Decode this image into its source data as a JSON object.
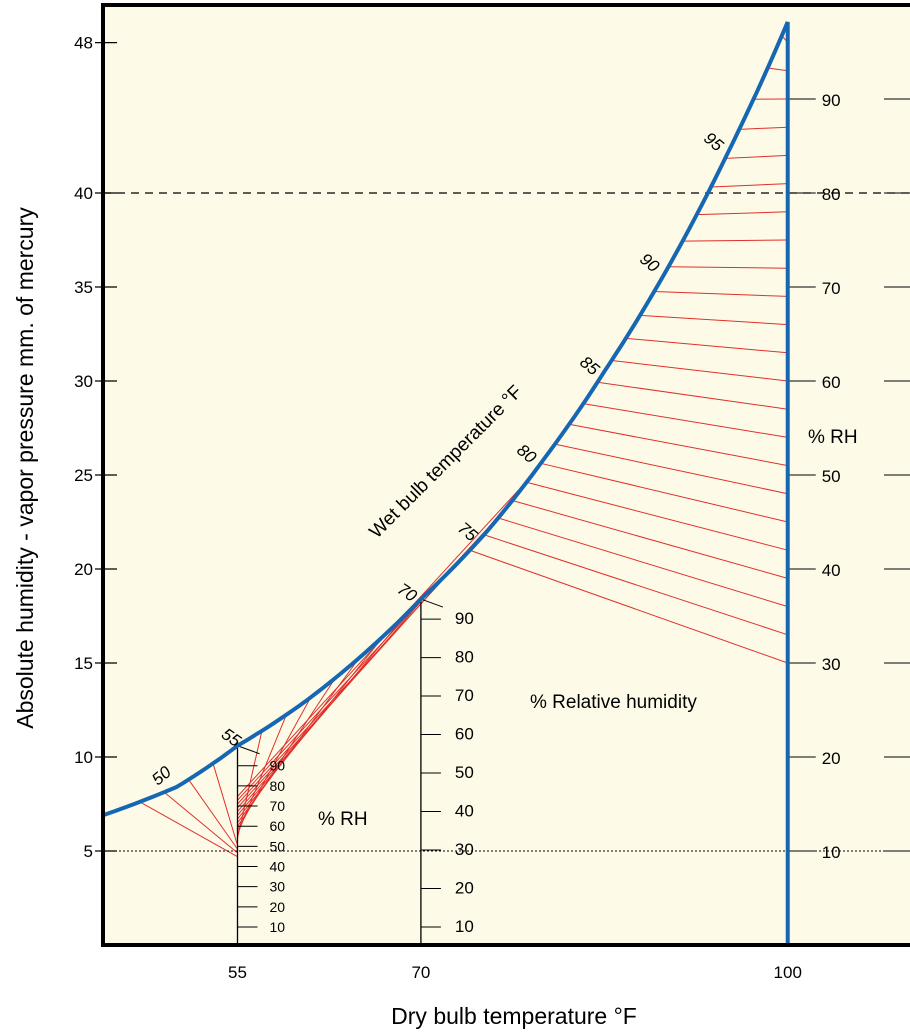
{
  "chart_data": {
    "type": "line",
    "xlabel": "Dry bulb temperature °F",
    "ylabel": "Absolute humidity - vapor pressure mm. of mercury",
    "x_ticks": [
      55,
      70,
      100
    ],
    "y_ticks": [
      5,
      10,
      15,
      20,
      25,
      30,
      35,
      40,
      48
    ],
    "xlim": [
      44,
      110
    ],
    "ylim": [
      0,
      50
    ],
    "saturation_curve": {
      "x": [
        44,
        50,
        55,
        60,
        65,
        70,
        75,
        80,
        85,
        90,
        95,
        100
      ],
      "y": [
        6.9,
        8.4,
        10.6,
        12.7,
        15.3,
        18.4,
        21.7,
        25.8,
        30.5,
        35.8,
        42.0,
        49.1
      ]
    },
    "wet_bulb_labels": [
      "50",
      "55",
      "70",
      "75",
      "80",
      "85",
      "90",
      "95"
    ],
    "wet_bulb_caption": "Wet bulb temperature °F",
    "rh_scales": [
      {
        "x": 55,
        "ticks": [
          "10",
          "20",
          "30",
          "40",
          "50",
          "60",
          "70",
          "80",
          "90"
        ]
      },
      {
        "x": 70,
        "ticks": [
          "10",
          "20",
          "30",
          "40",
          "50",
          "60",
          "70",
          "80",
          "90"
        ]
      },
      {
        "x": 100,
        "ticks": [
          "10",
          "20",
          "30",
          "40",
          "50",
          "60",
          "70",
          "80",
          "90"
        ]
      }
    ],
    "rh_labels": {
      "left": "% RH",
      "right": "% RH",
      "center": "% Relative humidity"
    },
    "reference_lines": {
      "dashed_y": 40,
      "dotted_y": 5
    },
    "colors": {
      "curve": "#1667b3",
      "hatch": "#e0302a",
      "background": "#fdfbe8",
      "frame": "#000000"
    }
  }
}
